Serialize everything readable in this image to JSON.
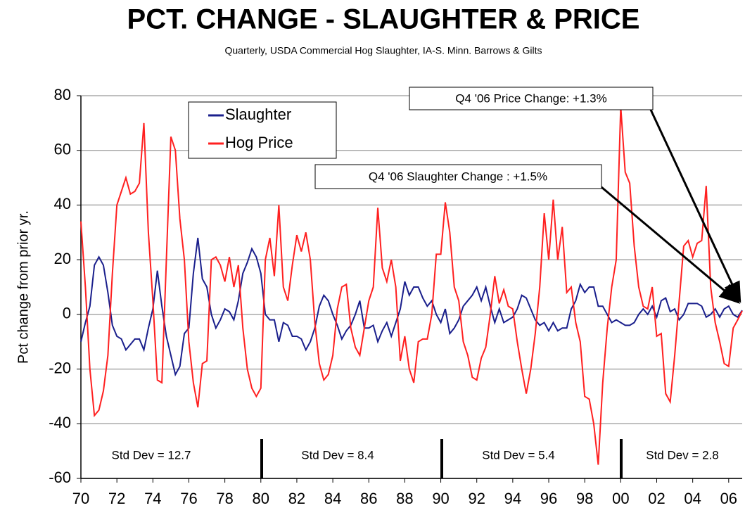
{
  "chart_data": {
    "type": "line",
    "title": "PCT. CHANGE - SLAUGHTER & PRICE",
    "subtitle": "Quarterly, USDA Commercial Hog Slaughter, IA-S. Minn. Barrows & Gilts",
    "y_label": "Pct change from prior yr.",
    "annotations": [
      "Q4 '06 Price Change: +1.3%",
      "Q4 '06 Slaughter Change :  +1.5%"
    ],
    "std_dev_labels": [
      "Std Dev = 12.7",
      "Std Dev = 8.4",
      "Std Dev = 5.4",
      "Std Dev = 2.8"
    ],
    "grid": true,
    "legend": "upper left",
    "xlim": [
      1970,
      2006.75
    ],
    "xticks": [
      {
        "value": 1970,
        "label": "70"
      },
      {
        "value": 1972,
        "label": "72"
      },
      {
        "value": 1974,
        "label": "74"
      },
      {
        "value": 1976,
        "label": "76"
      },
      {
        "value": 1978,
        "label": "78"
      },
      {
        "value": 1980,
        "label": "80"
      },
      {
        "value": 1982,
        "label": "82"
      },
      {
        "value": 1984,
        "label": "84"
      },
      {
        "value": 1986,
        "label": "86"
      },
      {
        "value": 1988,
        "label": "88"
      },
      {
        "value": 1990,
        "label": "90"
      },
      {
        "value": 1992,
        "label": "92"
      },
      {
        "value": 1994,
        "label": "94"
      },
      {
        "value": 1996,
        "label": "96"
      },
      {
        "value": 1998,
        "label": "98"
      },
      {
        "value": 2000,
        "label": "00"
      },
      {
        "value": 2002,
        "label": "02"
      },
      {
        "value": 2004,
        "label": "04"
      },
      {
        "value": 2006,
        "label": "06"
      }
    ],
    "ylim": [
      -60,
      80
    ],
    "yticks": [
      -60,
      -40,
      -20,
      0,
      20,
      40,
      60,
      80
    ],
    "x": [
      1970,
      1970.25,
      1970.5,
      1970.75,
      1971,
      1971.25,
      1971.5,
      1971.75,
      1972,
      1972.25,
      1972.5,
      1972.75,
      1973,
      1973.25,
      1973.5,
      1973.75,
      1974,
      1974.25,
      1974.5,
      1974.75,
      1975,
      1975.25,
      1975.5,
      1975.75,
      1976,
      1976.25,
      1976.5,
      1976.75,
      1977,
      1977.25,
      1977.5,
      1977.75,
      1978,
      1978.25,
      1978.5,
      1978.75,
      1979,
      1979.25,
      1979.5,
      1979.75,
      1980,
      1980.25,
      1980.5,
      1980.75,
      1981,
      1981.25,
      1981.5,
      1981.75,
      1982,
      1982.25,
      1982.5,
      1982.75,
      1983,
      1983.25,
      1983.5,
      1983.75,
      1984,
      1984.25,
      1984.5,
      1984.75,
      1985,
      1985.25,
      1985.5,
      1985.75,
      1986,
      1986.25,
      1986.5,
      1986.75,
      1987,
      1987.25,
      1987.5,
      1987.75,
      1988,
      1988.25,
      1988.5,
      1988.75,
      1989,
      1989.25,
      1989.5,
      1989.75,
      1990,
      1990.25,
      1990.5,
      1990.75,
      1991,
      1991.25,
      1991.5,
      1991.75,
      1992,
      1992.25,
      1992.5,
      1992.75,
      1993,
      1993.25,
      1993.5,
      1993.75,
      1994,
      1994.25,
      1994.5,
      1994.75,
      1995,
      1995.25,
      1995.5,
      1995.75,
      1996,
      1996.25,
      1996.5,
      1996.75,
      1997,
      1997.25,
      1997.5,
      1997.75,
      1998,
      1998.25,
      1998.5,
      1998.75,
      1999,
      1999.25,
      1999.5,
      1999.75,
      2000,
      2000.25,
      2000.5,
      2000.75,
      2001,
      2001.25,
      2001.5,
      2001.75,
      2002,
      2002.25,
      2002.5,
      2002.75,
      2003,
      2003.25,
      2003.5,
      2003.75,
      2004,
      2004.25,
      2004.5,
      2004.75,
      2005,
      2005.25,
      2005.5,
      2005.75,
      2006,
      2006.25,
      2006.5,
      2006.75
    ],
    "series": [
      {
        "name": "Slaughter",
        "color": "#1a1f8c",
        "values": [
          -10,
          -3,
          3,
          18,
          21,
          18,
          8,
          -4,
          -8,
          -9,
          -13,
          -11,
          -9,
          -9,
          -13,
          -5,
          2,
          16,
          3,
          -8,
          -15,
          -22,
          -19,
          -7,
          -5,
          15,
          28,
          13,
          10,
          0,
          -5,
          -2,
          2,
          1,
          -2,
          5,
          15,
          19,
          24,
          21,
          15,
          0,
          -2,
          -2,
          -10,
          -3,
          -4,
          -8,
          -8,
          -9,
          -13,
          -10,
          -5,
          3,
          7,
          5,
          0,
          -4,
          -9,
          -6,
          -4,
          0,
          5,
          -5,
          -5,
          -4,
          -10,
          -6,
          -3,
          -8,
          -3,
          2,
          12,
          7,
          10,
          10,
          6,
          3,
          5,
          0,
          -3,
          2,
          -7,
          -5,
          -2,
          3,
          5,
          7,
          10,
          5,
          10,
          3,
          -3,
          2,
          -3,
          -2,
          -1,
          2,
          7,
          6,
          2,
          -2,
          -4,
          -3,
          -6,
          -3,
          -6,
          -5,
          -5,
          2,
          5,
          11,
          8,
          10,
          10,
          3,
          3,
          0,
          -3,
          -2,
          -3,
          -4,
          -4,
          -3,
          0,
          2,
          0,
          3,
          -1,
          5,
          6,
          1,
          2,
          -2,
          0,
          4,
          4,
          4,
          3,
          -1,
          0,
          2,
          -1,
          2,
          3,
          0,
          -1,
          1.5
        ]
      },
      {
        "name": "Hog Price",
        "color": "#ff2020",
        "values": [
          34,
          10,
          -20,
          -37,
          -35,
          -28,
          -15,
          15,
          40,
          45,
          50,
          44,
          45,
          48,
          70,
          30,
          5,
          -24,
          -25,
          20,
          65,
          60,
          35,
          20,
          -10,
          -25,
          -34,
          -18,
          -17,
          20,
          21,
          18,
          12,
          21,
          10,
          18,
          -5,
          -20,
          -27,
          -30,
          -27,
          20,
          28,
          14,
          40,
          10,
          5,
          18,
          29,
          23,
          30,
          20,
          -3,
          -18,
          -24,
          -22,
          -15,
          2,
          10,
          11,
          -5,
          -12,
          -15,
          -5,
          5,
          10,
          39,
          17,
          12,
          20,
          10,
          -17,
          -8,
          -20,
          -25,
          -10,
          -9,
          -9,
          0,
          22,
          22,
          41,
          30,
          10,
          5,
          -10,
          -15,
          -23,
          -24,
          -16,
          -12,
          0,
          14,
          4,
          9,
          3,
          2,
          -10,
          -20,
          -29,
          -20,
          -7,
          10,
          37,
          20,
          42,
          20,
          32,
          8,
          10,
          -3,
          -10,
          -30,
          -31,
          -40,
          -55,
          -25,
          -5,
          10,
          20,
          76,
          52,
          48,
          25,
          10,
          3,
          2,
          10,
          -8,
          -7,
          -29,
          -32,
          -15,
          5,
          25,
          27,
          21,
          26,
          27,
          47,
          10,
          -3,
          -10,
          -18,
          -19,
          -5,
          -2,
          1.3
        ]
      }
    ]
  }
}
